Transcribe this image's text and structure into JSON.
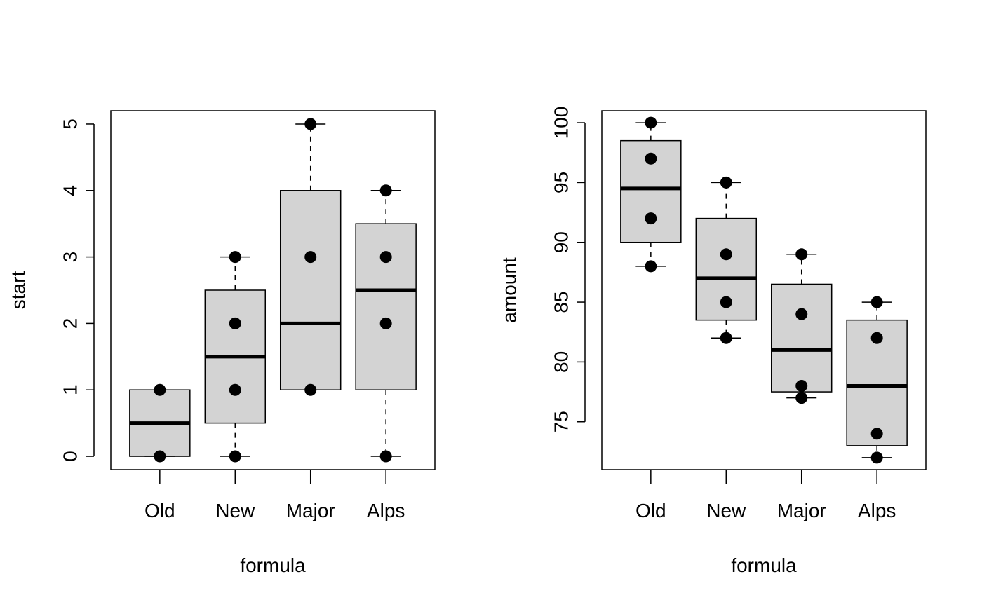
{
  "chart_data": [
    {
      "type": "boxplot",
      "title": "",
      "xlabel": "formula",
      "ylabel": "start",
      "categories": [
        "Old",
        "New",
        "Major",
        "Alps"
      ],
      "ylim": [
        -0.2,
        5.2
      ],
      "yticks": [
        0,
        1,
        2,
        3,
        4,
        5
      ],
      "ytick_labels": [
        "0",
        "1",
        "2",
        "3",
        "4",
        "5"
      ],
      "boxes": [
        {
          "category": "Old",
          "whisker_low": 0,
          "q1": 0,
          "median": 0.5,
          "q3": 1,
          "whisker_high": 1
        },
        {
          "category": "New",
          "whisker_low": 0,
          "q1": 0.5,
          "median": 1.5,
          "q3": 2.5,
          "whisker_high": 3
        },
        {
          "category": "Major",
          "whisker_low": 1,
          "q1": 1,
          "median": 2,
          "q3": 4,
          "whisker_high": 5
        },
        {
          "category": "Alps",
          "whisker_low": 0,
          "q1": 1,
          "median": 2.5,
          "q3": 3.5,
          "whisker_high": 4
        }
      ],
      "points": [
        {
          "category": "Old",
          "values": [
            0,
            1
          ]
        },
        {
          "category": "New",
          "values": [
            0,
            1,
            2,
            3
          ]
        },
        {
          "category": "Major",
          "values": [
            1,
            3,
            5
          ]
        },
        {
          "category": "Alps",
          "values": [
            0,
            2,
            3,
            4
          ]
        }
      ]
    },
    {
      "type": "boxplot",
      "title": "",
      "xlabel": "formula",
      "ylabel": "amount",
      "categories": [
        "Old",
        "New",
        "Major",
        "Alps"
      ],
      "ylim": [
        71,
        101
      ],
      "yticks": [
        75,
        80,
        85,
        90,
        95,
        100
      ],
      "ytick_labels": [
        "75",
        "80",
        "85",
        "90",
        "95",
        "100"
      ],
      "boxes": [
        {
          "category": "Old",
          "whisker_low": 88,
          "q1": 90,
          "median": 94.5,
          "q3": 98.5,
          "whisker_high": 100
        },
        {
          "category": "New",
          "whisker_low": 82,
          "q1": 83.5,
          "median": 87,
          "q3": 92,
          "whisker_high": 95
        },
        {
          "category": "Major",
          "whisker_low": 77,
          "q1": 77.5,
          "median": 81,
          "q3": 86.5,
          "whisker_high": 89
        },
        {
          "category": "Alps",
          "whisker_low": 72,
          "q1": 73,
          "median": 78,
          "q3": 83.5,
          "whisker_high": 85
        }
      ],
      "points": [
        {
          "category": "Old",
          "values": [
            88,
            92,
            97,
            100
          ]
        },
        {
          "category": "New",
          "values": [
            82,
            85,
            89,
            95
          ]
        },
        {
          "category": "Major",
          "values": [
            77,
            78,
            84,
            89
          ]
        },
        {
          "category": "Alps",
          "values": [
            72,
            74,
            82,
            85
          ]
        }
      ]
    }
  ],
  "style": {
    "box_fill": "#d3d3d3",
    "line_color": "#000000",
    "point_color": "#000000"
  }
}
